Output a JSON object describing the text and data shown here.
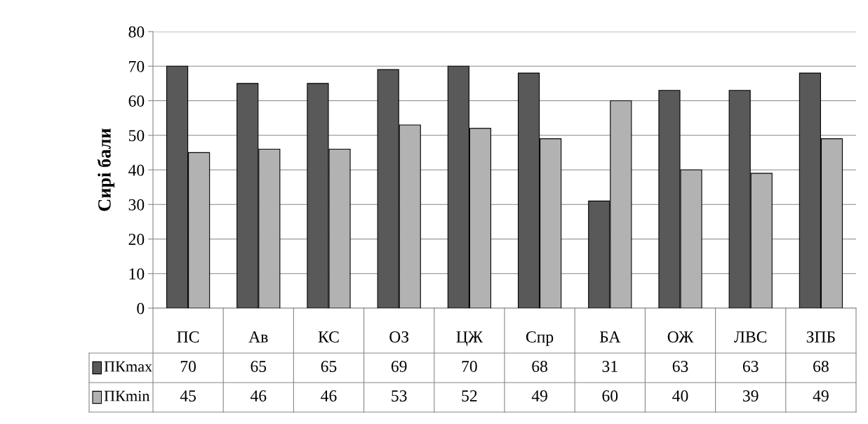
{
  "chart_data": {
    "type": "bar",
    "ylabel": "Сирі бали",
    "categories": [
      "ПС",
      "Ав",
      "КС",
      "ОЗ",
      "ЦЖ",
      "Спр",
      "БА",
      "ОЖ",
      "ЛВС",
      "ЗПБ"
    ],
    "series": [
      {
        "name": "ПКmax",
        "color": "#595959",
        "values": [
          70,
          65,
          65,
          69,
          70,
          68,
          31,
          63,
          63,
          68
        ]
      },
      {
        "name": "ПКmin",
        "color": "#b2b2b2",
        "values": [
          45,
          46,
          46,
          53,
          52,
          49,
          60,
          40,
          39,
          49
        ]
      }
    ],
    "ylim": [
      0,
      80
    ],
    "yticks": [
      0,
      10,
      20,
      30,
      40,
      50,
      60,
      70,
      80
    ],
    "grid": "y",
    "legend": "bottom",
    "data_labels": true
  }
}
